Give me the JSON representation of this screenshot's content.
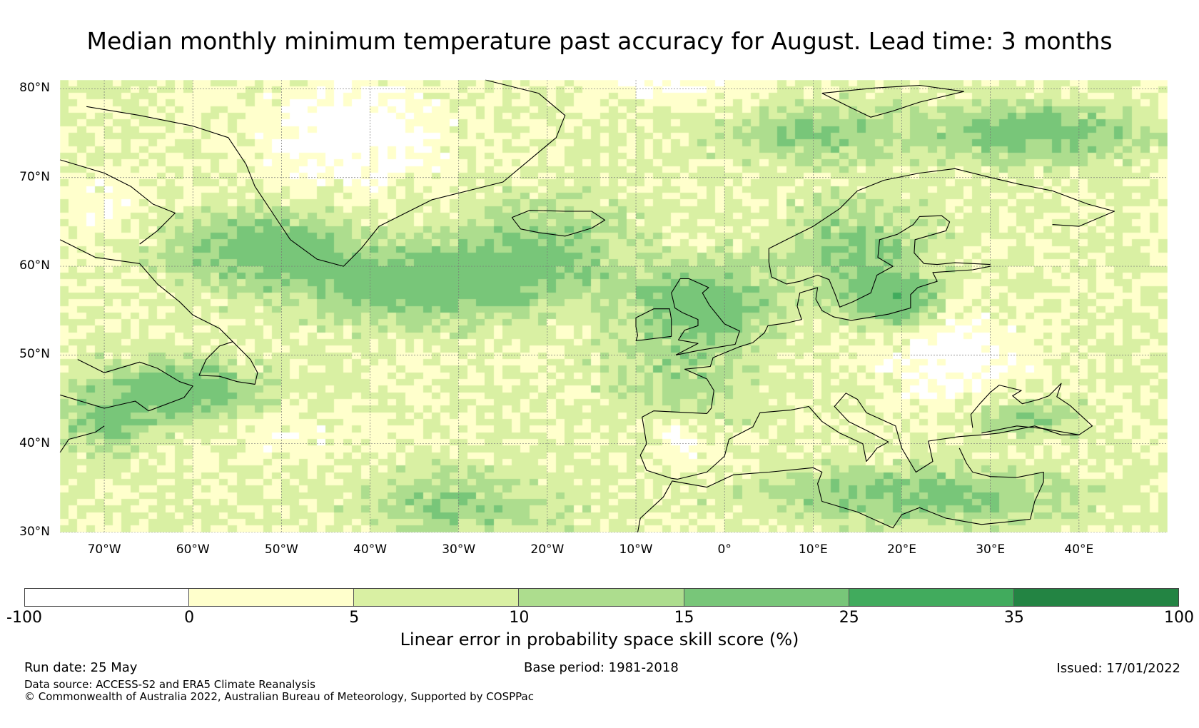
{
  "title": "Median monthly minimum temperature past accuracy for August. Lead time: 3 months",
  "map": {
    "extent": {
      "lon_min": -75,
      "lon_max": 50,
      "lat_min": 30,
      "lat_max": 81
    },
    "lat_ticks": [
      {
        "value": 80,
        "label": "80°N"
      },
      {
        "value": 70,
        "label": "70°N"
      },
      {
        "value": 60,
        "label": "60°N"
      },
      {
        "value": 50,
        "label": "50°N"
      },
      {
        "value": 40,
        "label": "40°N"
      },
      {
        "value": 30,
        "label": "30°N"
      }
    ],
    "lon_ticks": [
      {
        "value": -70,
        "label": "70°W"
      },
      {
        "value": -60,
        "label": "60°W"
      },
      {
        "value": -50,
        "label": "50°W"
      },
      {
        "value": -40,
        "label": "40°W"
      },
      {
        "value": -30,
        "label": "30°W"
      },
      {
        "value": -20,
        "label": "20°W"
      },
      {
        "value": -10,
        "label": "10°W"
      },
      {
        "value": 0,
        "label": "0°"
      },
      {
        "value": 10,
        "label": "10°E"
      },
      {
        "value": 20,
        "label": "20°E"
      },
      {
        "value": 30,
        "label": "30°E"
      },
      {
        "value": 40,
        "label": "40°E"
      }
    ],
    "gridlines": true,
    "coastlines": true
  },
  "colorbar": {
    "boundaries": [
      "-100",
      "0",
      "5",
      "10",
      "15",
      "25",
      "35",
      "100"
    ],
    "colors": [
      "#ffffff",
      "#ffffcc",
      "#d9f0a3",
      "#addd8e",
      "#78c679",
      "#41ab5d",
      "#238443"
    ],
    "label": "Linear error in probability space skill score (%)"
  },
  "footer": {
    "run_date": "Run date: 25 May",
    "base_period": "Base period: 1981-2018",
    "issued": "Issued: 17/01/2022",
    "data_source": "Data source: ACCESS-S2 and ERA5 Climate Reanalysis",
    "copyright": "© Commonwealth of Australia 2022, Australian Bureau of Meteorology, Supported by COSPPac"
  }
}
